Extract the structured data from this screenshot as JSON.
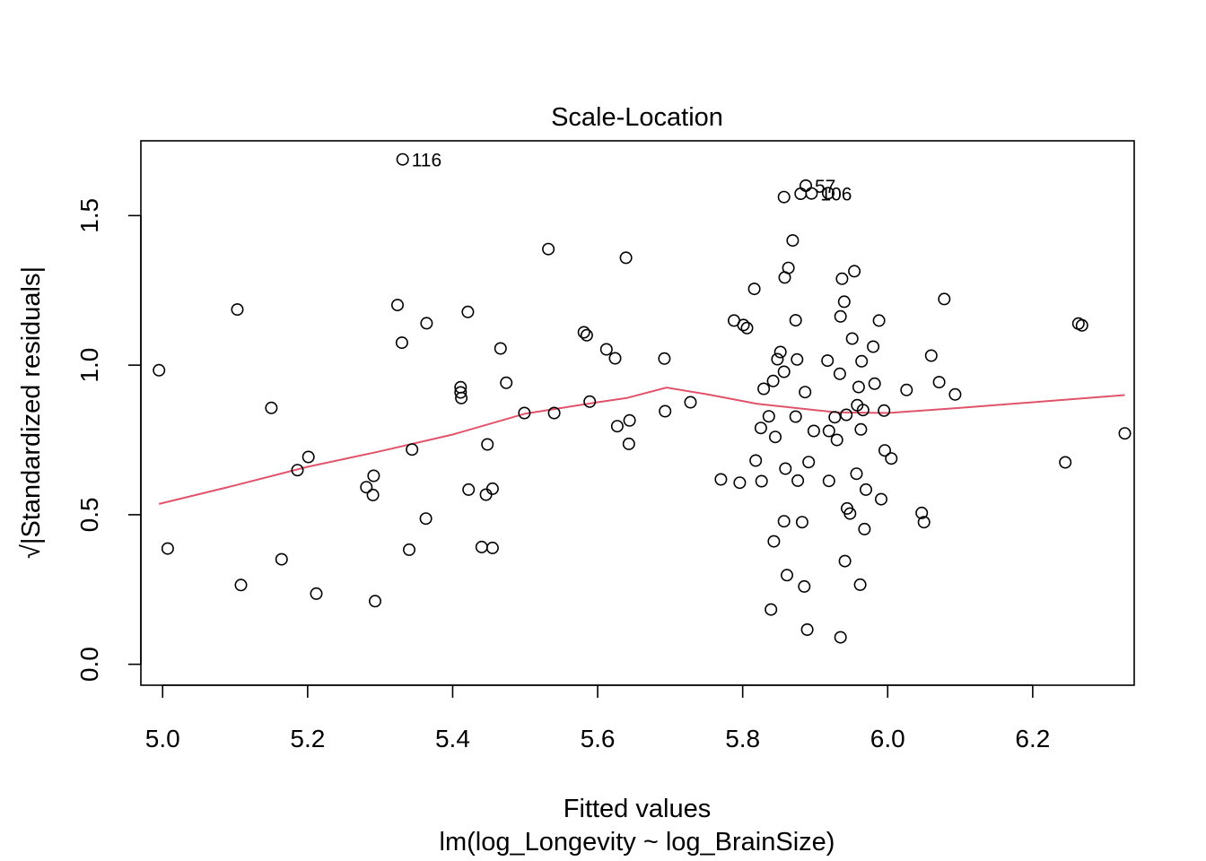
{
  "chart_data": {
    "type": "scatter",
    "title": "Scale-Location",
    "xlabel": "Fitted values",
    "subtitle": "lm(log_Longevity ~ log_BrainSize)",
    "ylabel": "√|Standardized residuals|",
    "xlim": [
      4.97,
      6.34
    ],
    "ylim": [
      -0.07,
      1.75
    ],
    "x_ticks": [
      5.0,
      5.2,
      5.4,
      5.6,
      5.8,
      6.0,
      6.2
    ],
    "x_tick_labels": [
      "5.0",
      "5.2",
      "5.4",
      "5.6",
      "5.8",
      "6.0",
      "6.2"
    ],
    "y_ticks": [
      0.0,
      0.5,
      1.0,
      1.5
    ],
    "y_tick_labels": [
      "0.0",
      "0.5",
      "1.0",
      "1.5"
    ],
    "grid": false,
    "point_color": "#000000",
    "smooth_color": "#DF536B",
    "points": [
      [
        4.995,
        0.983
      ],
      [
        5.007,
        0.387
      ],
      [
        5.103,
        1.186
      ],
      [
        5.108,
        0.265
      ],
      [
        5.15,
        0.857
      ],
      [
        5.164,
        0.351
      ],
      [
        5.186,
        0.649
      ],
      [
        5.201,
        0.693
      ],
      [
        5.212,
        0.236
      ],
      [
        5.281,
        0.592
      ],
      [
        5.29,
        0.566
      ],
      [
        5.291,
        0.63
      ],
      [
        5.293,
        0.211
      ],
      [
        5.324,
        1.201
      ],
      [
        5.33,
        1.075
      ],
      [
        5.331,
        1.688
      ],
      [
        5.34,
        0.383
      ],
      [
        5.344,
        0.718
      ],
      [
        5.363,
        0.487
      ],
      [
        5.364,
        1.14
      ],
      [
        5.411,
        0.926
      ],
      [
        5.411,
        0.909
      ],
      [
        5.412,
        0.89
      ],
      [
        5.421,
        1.178
      ],
      [
        5.422,
        0.584
      ],
      [
        5.44,
        0.392
      ],
      [
        5.446,
        0.567
      ],
      [
        5.448,
        0.735
      ],
      [
        5.455,
        0.587
      ],
      [
        5.455,
        0.389
      ],
      [
        5.466,
        1.056
      ],
      [
        5.474,
        0.941
      ],
      [
        5.499,
        0.84
      ],
      [
        5.532,
        1.388
      ],
      [
        5.54,
        0.84
      ],
      [
        5.581,
        1.11
      ],
      [
        5.585,
        1.1
      ],
      [
        5.589,
        0.878
      ],
      [
        5.612,
        1.053
      ],
      [
        5.624,
        1.023
      ],
      [
        5.627,
        0.796
      ],
      [
        5.639,
        1.359
      ],
      [
        5.644,
        0.815
      ],
      [
        5.643,
        0.737
      ],
      [
        5.692,
        1.022
      ],
      [
        5.693,
        0.846
      ],
      [
        5.728,
        0.876
      ],
      [
        5.77,
        0.618
      ],
      [
        5.788,
        1.149
      ],
      [
        5.796,
        0.607
      ],
      [
        5.801,
        1.134
      ],
      [
        5.806,
        1.124
      ],
      [
        5.816,
        1.255
      ],
      [
        5.818,
        0.681
      ],
      [
        5.825,
        0.79
      ],
      [
        5.826,
        0.612
      ],
      [
        5.829,
        0.921
      ],
      [
        5.836,
        0.829
      ],
      [
        5.839,
        0.183
      ],
      [
        5.842,
        0.947
      ],
      [
        5.845,
        0.76
      ],
      [
        5.843,
        0.411
      ],
      [
        5.848,
        1.02
      ],
      [
        5.852,
        1.044
      ],
      [
        5.857,
        1.562
      ],
      [
        5.857,
        0.978
      ],
      [
        5.857,
        0.478
      ],
      [
        5.858,
        1.293
      ],
      [
        5.859,
        0.654
      ],
      [
        5.861,
        0.298
      ],
      [
        5.863,
        1.325
      ],
      [
        5.869,
        1.417
      ],
      [
        5.873,
        1.15
      ],
      [
        5.873,
        0.828
      ],
      [
        5.875,
        1.019
      ],
      [
        5.876,
        0.614
      ],
      [
        5.88,
        1.573
      ],
      [
        5.882,
        0.475
      ],
      [
        5.885,
        0.26
      ],
      [
        5.886,
        0.91
      ],
      [
        5.887,
        1.6
      ],
      [
        5.889,
        0.116
      ],
      [
        5.891,
        0.676
      ],
      [
        5.895,
        1.574
      ],
      [
        5.898,
        0.78
      ],
      [
        5.918,
        1.575
      ],
      [
        5.917,
        1.015
      ],
      [
        5.919,
        0.78
      ],
      [
        5.919,
        0.613
      ],
      [
        5.927,
        0.826
      ],
      [
        5.93,
        0.75
      ],
      [
        5.934,
        0.971
      ],
      [
        5.935,
        1.163
      ],
      [
        5.935,
        0.09
      ],
      [
        5.937,
        1.289
      ],
      [
        5.94,
        1.212
      ],
      [
        5.941,
        0.345
      ],
      [
        5.943,
        0.834
      ],
      [
        5.944,
        0.521
      ],
      [
        5.948,
        0.504
      ],
      [
        5.951,
        1.089
      ],
      [
        5.954,
        1.314
      ],
      [
        5.957,
        0.637
      ],
      [
        5.958,
        0.866
      ],
      [
        5.96,
        0.927
      ],
      [
        5.962,
        0.266
      ],
      [
        5.963,
        0.785
      ],
      [
        5.964,
        1.013
      ],
      [
        5.966,
        0.85
      ],
      [
        5.968,
        0.452
      ],
      [
        5.97,
        0.584
      ],
      [
        5.98,
        1.062
      ],
      [
        5.982,
        0.938
      ],
      [
        5.988,
        1.149
      ],
      [
        5.991,
        0.552
      ],
      [
        5.995,
        0.848
      ],
      [
        5.996,
        0.715
      ],
      [
        6.005,
        0.688
      ],
      [
        6.026,
        0.917
      ],
      [
        6.047,
        0.506
      ],
      [
        6.05,
        0.475
      ],
      [
        6.06,
        1.032
      ],
      [
        6.071,
        0.943
      ],
      [
        6.078,
        1.221
      ],
      [
        6.093,
        0.902
      ],
      [
        6.245,
        0.675
      ],
      [
        6.263,
        1.139
      ],
      [
        6.268,
        1.133
      ],
      [
        6.327,
        0.772
      ]
    ],
    "smooth_line": [
      [
        4.995,
        0.536
      ],
      [
        5.1,
        0.598
      ],
      [
        5.2,
        0.66
      ],
      [
        5.3,
        0.712
      ],
      [
        5.4,
        0.768
      ],
      [
        5.5,
        0.838
      ],
      [
        5.6,
        0.876
      ],
      [
        5.64,
        0.89
      ],
      [
        5.695,
        0.925
      ],
      [
        5.75,
        0.903
      ],
      [
        5.82,
        0.871
      ],
      [
        5.9,
        0.85
      ],
      [
        5.93,
        0.842
      ],
      [
        6.0,
        0.84
      ],
      [
        6.1,
        0.857
      ],
      [
        6.327,
        0.9
      ]
    ],
    "annotations": [
      {
        "text": "116",
        "x": 5.331,
        "y": 1.688
      },
      {
        "text": "57",
        "x": 5.887,
        "y": 1.6
      },
      {
        "text": "106",
        "x": 5.895,
        "y": 1.574
      }
    ]
  }
}
